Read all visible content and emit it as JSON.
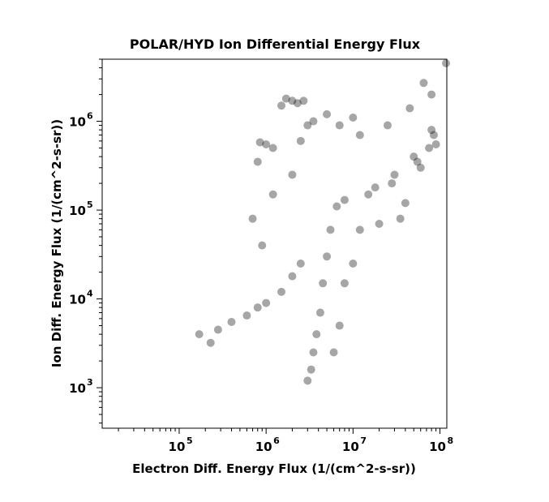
{
  "chart_data": {
    "type": "scatter",
    "title": "POLAR/HYD  Ion Differential Energy Flux",
    "xlabel": "Electron Diff. Energy Flux (1/(cm^2-s-sr))",
    "ylabel": "Ion Diff. Energy Flux (1/(cm^2-s-sr))",
    "xscale": "log",
    "yscale": "log",
    "xlim": [
      13000,
      120000000
    ],
    "ylim": [
      350,
      5000000
    ],
    "x_ticks": [
      {
        "base": "10",
        "exp": "5"
      },
      {
        "base": "10",
        "exp": "6"
      },
      {
        "base": "10",
        "exp": "7"
      },
      {
        "base": "10",
        "exp": "8"
      }
    ],
    "y_ticks": [
      {
        "base": "10",
        "exp": "3"
      },
      {
        "base": "10",
        "exp": "4"
      },
      {
        "base": "10",
        "exp": "5"
      },
      {
        "base": "10",
        "exp": "6"
      }
    ],
    "grid": false,
    "marker_color": "#000000",
    "marker_opacity": 0.35,
    "series": [
      {
        "points": [
          [
            3000000,
            1200
          ],
          [
            3300000,
            1600
          ],
          [
            3500000,
            2500
          ],
          [
            3800000,
            4000
          ],
          [
            4200000,
            7000
          ],
          [
            4500000,
            15000
          ],
          [
            5000000,
            30000
          ],
          [
            5500000,
            60000
          ],
          [
            6500000,
            110000
          ],
          [
            8000000,
            130000
          ],
          [
            15000000,
            150000
          ],
          [
            30000000,
            250000
          ],
          [
            50000000,
            400000
          ],
          [
            80000000,
            800000
          ],
          [
            130000000,
            4500000
          ],
          [
            65000000,
            2700000
          ],
          [
            80000000,
            2000000
          ],
          [
            45000000,
            1400000
          ],
          [
            25000000,
            900000
          ],
          [
            12000000,
            700000
          ],
          [
            1700000,
            1800000
          ],
          [
            2000000,
            1700000
          ],
          [
            2300000,
            1600000
          ],
          [
            1500000,
            1500000
          ],
          [
            2700000,
            1700000
          ],
          [
            1000000,
            550000
          ],
          [
            850000,
            580000
          ],
          [
            1200000,
            500000
          ],
          [
            800000,
            350000
          ],
          [
            170000,
            4000
          ],
          [
            230000,
            3200
          ],
          [
            280000,
            4500
          ],
          [
            400000,
            5500
          ],
          [
            600000,
            6500
          ],
          [
            800000,
            8000
          ],
          [
            1000000,
            9000
          ],
          [
            1500000,
            12000
          ],
          [
            2000000,
            18000
          ],
          [
            2500000,
            25000
          ],
          [
            900000,
            40000
          ],
          [
            700000,
            80000
          ],
          [
            1200000,
            150000
          ],
          [
            2000000,
            250000
          ],
          [
            2500000,
            600000
          ],
          [
            3000000,
            900000
          ],
          [
            3500000,
            1000000
          ],
          [
            5000000,
            1200000
          ],
          [
            7000000,
            900000
          ],
          [
            10000000,
            1100000
          ],
          [
            6000000,
            2500
          ],
          [
            7000000,
            5000
          ],
          [
            8000000,
            15000
          ],
          [
            10000000,
            25000
          ],
          [
            12000000,
            60000
          ],
          [
            20000000,
            70000
          ],
          [
            35000000,
            80000
          ],
          [
            40000000,
            120000
          ],
          [
            60000000,
            300000
          ],
          [
            75000000,
            500000
          ],
          [
            85000000,
            700000
          ],
          [
            90000000,
            550000
          ],
          [
            55000000,
            350000
          ],
          [
            28000000,
            200000
          ],
          [
            18000000,
            180000
          ]
        ]
      }
    ]
  }
}
